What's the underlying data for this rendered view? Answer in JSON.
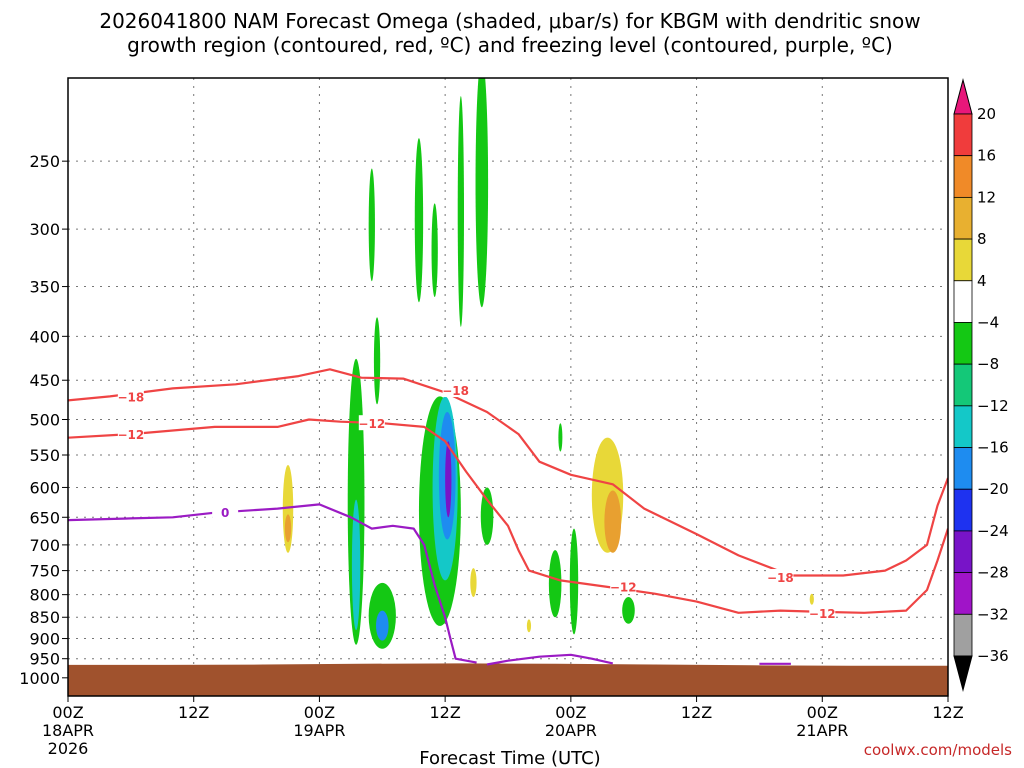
{
  "chart_data": {
    "type": "time-height cross section",
    "title_line1": "2026041800 NAM Forecast Omega (shaded, μbar/s) for KBGM with dendritic snow",
    "title_line2": "growth region (contoured, red, ºC) and freezing level (contoured, purple, ºC)",
    "xlabel": "Forecast Time (UTC)",
    "credit": "coolwx.com/models",
    "y_axis": {
      "unit": "hPa",
      "range": [
        200,
        1050
      ],
      "ticks": [
        250,
        300,
        350,
        400,
        450,
        500,
        550,
        600,
        650,
        700,
        750,
        800,
        850,
        900,
        950,
        1000
      ]
    },
    "x_axis": {
      "unit": "forecast hours",
      "range": [
        0,
        84
      ],
      "ticks": [
        {
          "hour": 0,
          "label": "00Z",
          "date": "18APR",
          "year": "2026"
        },
        {
          "hour": 12,
          "label": "12Z",
          "date": "",
          "year": ""
        },
        {
          "hour": 24,
          "label": "00Z",
          "date": "19APR",
          "year": ""
        },
        {
          "hour": 36,
          "label": "12Z",
          "date": "",
          "year": ""
        },
        {
          "hour": 48,
          "label": "00Z",
          "date": "20APR",
          "year": ""
        },
        {
          "hour": 60,
          "label": "12Z",
          "date": "",
          "year": ""
        },
        {
          "hour": 72,
          "label": "00Z",
          "date": "21APR",
          "year": ""
        },
        {
          "hour": 84,
          "label": "12Z",
          "date": "",
          "year": ""
        }
      ]
    },
    "colorbar": {
      "levels": [
        "20",
        "16",
        "12",
        "8",
        "4",
        "−4",
        "−8",
        "−12",
        "−16",
        "−20",
        "−24",
        "−28",
        "−32",
        "−36"
      ],
      "colors": [
        "#e8177a",
        "#f03c3c",
        "#f08a28",
        "#e8b030",
        "#e8d838",
        "#ffffff",
        "#14c814",
        "#14c878",
        "#14c8c8",
        "#1e8cf0",
        "#1e32f0",
        "#7814c8",
        "#a014c8",
        "#a0a0a0",
        "#000000"
      ]
    },
    "surface": {
      "color": "#a0522d",
      "pressure": [
        966,
        966,
        965,
        963,
        962,
        963,
        965,
        967,
        968,
        968
      ]
    },
    "contours": [
      {
        "name": "-18C dendritic",
        "color": "#ef4444",
        "label": "−18",
        "points": [
          [
            0,
            475
          ],
          [
            4,
            470
          ],
          [
            10,
            460
          ],
          [
            16,
            455
          ],
          [
            22,
            445
          ],
          [
            25,
            437
          ],
          [
            28,
            447
          ],
          [
            32,
            448
          ],
          [
            36,
            465
          ],
          [
            40,
            490
          ],
          [
            43,
            520
          ],
          [
            45,
            560
          ],
          [
            48,
            580
          ],
          [
            52,
            595
          ],
          [
            55,
            635
          ],
          [
            60,
            680
          ],
          [
            64,
            720
          ],
          [
            69,
            760
          ],
          [
            74,
            760
          ],
          [
            78,
            750
          ],
          [
            80,
            730
          ],
          [
            82,
            700
          ],
          [
            83,
            630
          ],
          [
            84,
            585
          ]
        ],
        "label_points": [
          [
            6,
            470
          ],
          [
            37,
            462
          ],
          [
            68,
            763
          ]
        ]
      },
      {
        "name": "-12C dendritic",
        "color": "#ef4444",
        "label": "−12",
        "points": [
          [
            0,
            525
          ],
          [
            6,
            520
          ],
          [
            14,
            510
          ],
          [
            20,
            510
          ],
          [
            23,
            500
          ],
          [
            26,
            503
          ],
          [
            30,
            505
          ],
          [
            34,
            510
          ],
          [
            36,
            530
          ],
          [
            38,
            575
          ],
          [
            40,
            620
          ],
          [
            42,
            665
          ],
          [
            43,
            710
          ],
          [
            44,
            750
          ],
          [
            47,
            770
          ],
          [
            52,
            785
          ],
          [
            56,
            798
          ],
          [
            60,
            815
          ],
          [
            64,
            840
          ],
          [
            68,
            835
          ],
          [
            72,
            838
          ],
          [
            76,
            840
          ],
          [
            80,
            835
          ],
          [
            82,
            790
          ],
          [
            83,
            730
          ],
          [
            84,
            670
          ]
        ],
        "label_points": [
          [
            6,
            520
          ],
          [
            29,
            505
          ],
          [
            53,
            783
          ],
          [
            72,
            840
          ]
        ]
      },
      {
        "name": "0C freezing level",
        "color": "#9b1bc4",
        "label": "0",
        "points": [
          [
            0,
            655
          ],
          [
            6,
            652
          ],
          [
            10,
            650
          ],
          [
            14,
            642
          ],
          [
            20,
            635
          ],
          [
            24,
            628
          ],
          [
            27,
            650
          ],
          [
            29,
            670
          ],
          [
            31,
            665
          ],
          [
            33,
            670
          ],
          [
            34,
            700
          ],
          [
            35,
            780
          ],
          [
            36,
            850
          ],
          [
            36.5,
            900
          ],
          [
            37,
            950
          ],
          [
            39,
            960
          ]
        ],
        "label_points": [
          [
            15,
            641
          ]
        ]
      },
      {
        "name": "0C freezing level near surface",
        "color": "#9b1bc4",
        "label": "",
        "points": [
          [
            40,
            965
          ],
          [
            42,
            955
          ],
          [
            45,
            945
          ],
          [
            48,
            940
          ],
          [
            50,
            950
          ],
          [
            52,
            962
          ]
        ],
        "label_points": []
      },
      {
        "name": "0C small segment",
        "color": "#9b1bc4",
        "label": "",
        "points": [
          [
            66,
            963
          ],
          [
            69,
            963
          ]
        ],
        "label_points": []
      }
    ],
    "omega_features": [
      {
        "name": "yellow cell 19APR 00Z",
        "color": "#e8d838",
        "center": [
          21,
          640
        ],
        "half_width": 0.5,
        "half_height": 75
      },
      {
        "name": "orange core 19APR 00Z",
        "color": "#e8a030",
        "center": [
          21,
          670
        ],
        "half_width": 0.3,
        "half_height": 25
      },
      {
        "name": "green column A",
        "color": "#14c814",
        "center": [
          27.5,
          670
        ],
        "half_width": 0.8,
        "half_height": 245
      },
      {
        "name": "teal column A",
        "color": "#14c8c8",
        "center": [
          27.5,
          750
        ],
        "half_width": 0.4,
        "half_height": 130
      },
      {
        "name": "green blob lower",
        "color": "#14c814",
        "center": [
          30,
          850
        ],
        "half_width": 1.3,
        "half_height": 75
      },
      {
        "name": "blue blob lower",
        "color": "#1e8cf0",
        "center": [
          30,
          870
        ],
        "half_width": 0.6,
        "half_height": 35
      },
      {
        "name": "green strip top",
        "color": "#14c814",
        "center": [
          29,
          300
        ],
        "half_width": 0.3,
        "half_height": 45
      },
      {
        "name": "green strip mid",
        "color": "#14c814",
        "center": [
          29.5,
          430
        ],
        "half_width": 0.3,
        "half_height": 50
      },
      {
        "name": "green strip B",
        "color": "#14c814",
        "center": [
          33.5,
          300
        ],
        "half_width": 0.4,
        "half_height": 65
      },
      {
        "name": "green strip C",
        "color": "#14c814",
        "center": [
          35,
          320
        ],
        "half_width": 0.3,
        "half_height": 40
      },
      {
        "name": "green column B",
        "color": "#14c814",
        "center": [
          35.5,
          670
        ],
        "half_width": 2,
        "half_height": 200
      },
      {
        "name": "teal column B",
        "color": "#14c8c8",
        "center": [
          36,
          620
        ],
        "half_width": 1.2,
        "half_height": 150
      },
      {
        "name": "blue column B",
        "color": "#1e8cf0",
        "center": [
          36.2,
          590
        ],
        "half_width": 0.8,
        "half_height": 100
      },
      {
        "name": "purple core",
        "color": "#7814c8",
        "center": [
          36.3,
          590
        ],
        "half_width": 0.3,
        "half_height": 60
      },
      {
        "name": "green tall strip",
        "color": "#14c814",
        "center": [
          39.5,
          280
        ],
        "half_width": 0.6,
        "half_height": 90
      },
      {
        "name": "green upper strip",
        "color": "#14c814",
        "center": [
          37.5,
          300
        ],
        "half_width": 0.3,
        "half_height": 90
      },
      {
        "name": "green mid strip",
        "color": "#14c814",
        "center": [
          40,
          650
        ],
        "half_width": 0.6,
        "half_height": 50
      },
      {
        "name": "yellow cell small",
        "color": "#e8d838",
        "center": [
          38.7,
          775
        ],
        "half_width": 0.3,
        "half_height": 30
      },
      {
        "name": "yellow cell tiny",
        "color": "#e8d838",
        "center": [
          44,
          870
        ],
        "half_width": 0.2,
        "half_height": 15
      },
      {
        "name": "green lower 20APR",
        "color": "#14c814",
        "center": [
          46.5,
          780
        ],
        "half_width": 0.6,
        "half_height": 70
      },
      {
        "name": "green column 20APR",
        "color": "#14c814",
        "center": [
          48.3,
          780
        ],
        "half_width": 0.4,
        "half_height": 110
      },
      {
        "name": "yellow cell 20APR",
        "color": "#e8d838",
        "center": [
          51.5,
          620
        ],
        "half_width": 1.5,
        "half_height": 95
      },
      {
        "name": "orange core 20APR",
        "color": "#e8a030",
        "center": [
          52,
          660
        ],
        "half_width": 0.8,
        "half_height": 55
      },
      {
        "name": "green small 20APR",
        "color": "#14c814",
        "center": [
          53.5,
          835
        ],
        "half_width": 0.6,
        "half_height": 30
      },
      {
        "name": "green small B",
        "color": "#14c814",
        "center": [
          47,
          525
        ],
        "half_width": 0.15,
        "half_height": 20
      },
      {
        "name": "yellow tiny 21APR",
        "color": "#e8d838",
        "center": [
          71,
          810
        ],
        "half_width": 0.2,
        "half_height": 12
      }
    ]
  }
}
